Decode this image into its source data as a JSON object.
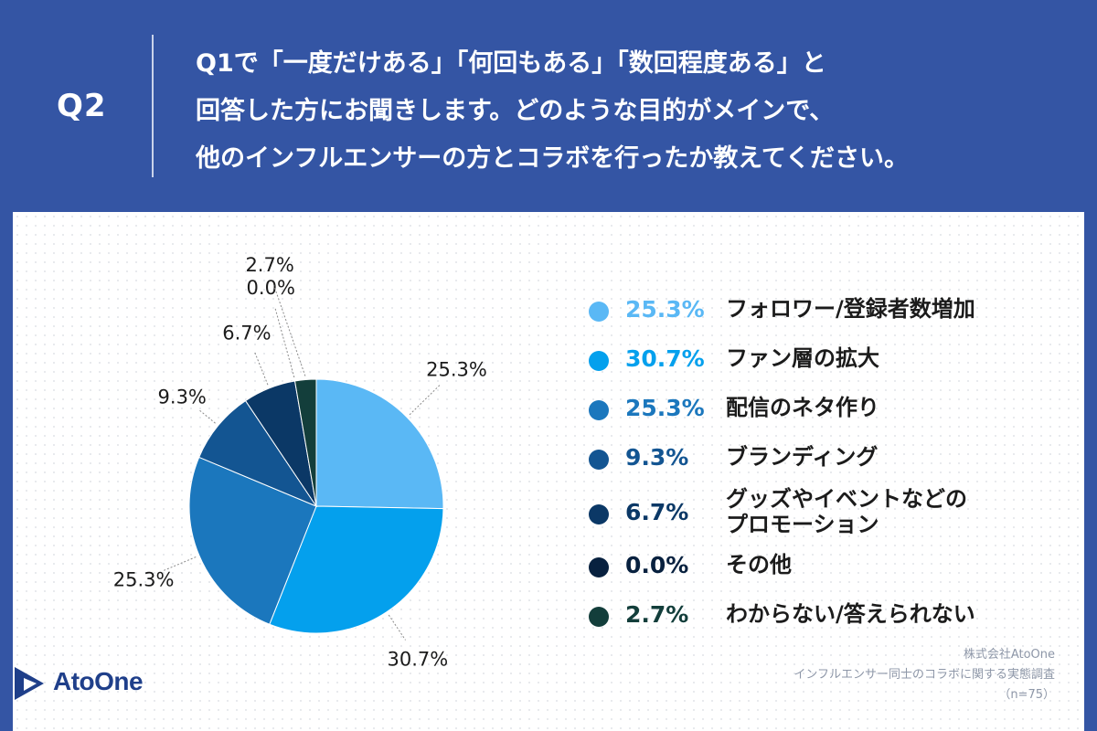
{
  "header": {
    "q_label": "Q2",
    "question_lines": [
      "Q1で「一度だけある」「何回もある」「数回程度ある」と",
      "回答した方にお聞きします。どのような目的がメインで、",
      "他のインフルエンサーの方とコラボを行ったか教えてください。"
    ]
  },
  "chart_data": {
    "type": "pie",
    "start_angle_deg": 0,
    "direction": "clockwise",
    "slices": [
      {
        "label": "フォロワー/登録者数増加",
        "pct_text": "25.3%",
        "value": 25.3,
        "color": "#5ab8f5"
      },
      {
        "label": "ファン層の拡大",
        "pct_text": "30.7%",
        "value": 30.7,
        "color": "#04a0ed"
      },
      {
        "label": "配信のネタ作り",
        "pct_text": "25.3%",
        "value": 25.3,
        "color": "#1b77bd"
      },
      {
        "label": "ブランディング",
        "pct_text": "9.3%",
        "value": 9.3,
        "color": "#135592"
      },
      {
        "label_lines": [
          "グッズやイベントなどの",
          "プロモーション"
        ],
        "pct_text": "6.7%",
        "value": 6.7,
        "color": "#0b3866"
      },
      {
        "label": "その他",
        "pct_text": "0.0%",
        "value": 0.0,
        "color": "#08213f"
      },
      {
        "label": "わからない/答えられない",
        "pct_text": "2.7%",
        "value": 2.7,
        "color": "#133e3b"
      }
    ]
  },
  "footer": {
    "logo_text": "AtoOne",
    "credit_lines": [
      "株式会社AtoOne",
      "インフルエンサー同士のコラボに関する実態調査",
      "（n=75）"
    ]
  },
  "colors": {
    "header_bg": "#3455a4",
    "panel_bg": "#ffffff",
    "logo_blue": "#1f3f8a"
  }
}
